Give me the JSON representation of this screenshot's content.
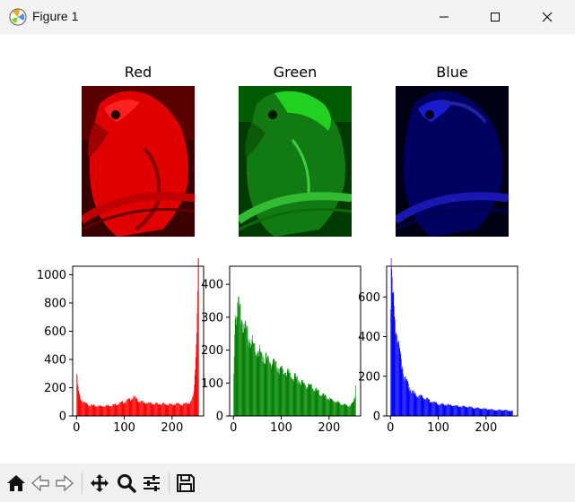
{
  "window": {
    "title": "Figure 1",
    "minimize_icon": "minimize-icon",
    "maximize_icon": "maximize-icon",
    "close_icon": "close-icon"
  },
  "toolbar": {
    "icons": [
      "home-icon",
      "back-icon",
      "forward-icon",
      "pan-icon",
      "zoom-icon",
      "configure-subplots-icon",
      "save-icon"
    ]
  },
  "images": [
    {
      "title": "Red",
      "color": "#ff0000"
    },
    {
      "title": "Green",
      "color": "#00ff00"
    },
    {
      "title": "Blue",
      "color": "#0000ff"
    }
  ],
  "chart_data": [
    {
      "type": "bar",
      "series": [
        {
          "color": "#ff0000"
        }
      ],
      "xlim": [
        -8,
        266
      ],
      "ylim": [
        0,
        1060
      ],
      "xticks": [
        0,
        100,
        200
      ],
      "yticks": [
        0,
        200,
        400,
        600,
        800,
        1000
      ],
      "xtick_labels": [
        "0",
        "100",
        "200"
      ],
      "ytick_labels": [
        "0",
        "200",
        "400",
        "600",
        "800",
        "1000"
      ],
      "x": [
        0,
        2,
        4,
        6,
        8,
        10,
        15,
        20,
        30,
        40,
        50,
        60,
        70,
        80,
        90,
        100,
        110,
        115,
        120,
        125,
        130,
        140,
        150,
        160,
        170,
        180,
        190,
        200,
        210,
        220,
        230,
        240,
        244,
        246,
        248,
        250,
        252,
        254,
        255
      ],
      "y": [
        300,
        220,
        170,
        140,
        125,
        110,
        95,
        85,
        75,
        70,
        70,
        72,
        75,
        80,
        90,
        100,
        115,
        125,
        130,
        120,
        105,
        95,
        90,
        88,
        85,
        85,
        82,
        80,
        85,
        80,
        88,
        100,
        150,
        230,
        350,
        520,
        760,
        1000,
        1020
      ]
    },
    {
      "type": "bar",
      "series": [
        {
          "color": "#008000"
        }
      ],
      "xlim": [
        -8,
        266
      ],
      "ylim": [
        0,
        455
      ],
      "xticks": [
        0,
        100,
        200
      ],
      "yticks": [
        0,
        100,
        200,
        300,
        400
      ],
      "xtick_labels": [
        "0",
        "100",
        "200"
      ],
      "ytick_labels": [
        "0",
        "100",
        "200",
        "300",
        "400"
      ],
      "x": [
        0,
        3,
        6,
        10,
        15,
        20,
        25,
        30,
        40,
        50,
        60,
        70,
        80,
        90,
        100,
        110,
        120,
        130,
        140,
        150,
        160,
        170,
        180,
        190,
        200,
        210,
        220,
        230,
        240,
        245,
        250,
        254,
        255
      ],
      "y": [
        120,
        340,
        310,
        330,
        300,
        280,
        260,
        240,
        220,
        200,
        185,
        170,
        160,
        150,
        140,
        135,
        125,
        115,
        105,
        95,
        90,
        80,
        70,
        60,
        52,
        45,
        40,
        35,
        30,
        32,
        40,
        60,
        95
      ]
    },
    {
      "type": "bar",
      "series": [
        {
          "color": "#0000ff"
        }
      ],
      "xlim": [
        -8,
        266
      ],
      "ylim": [
        0,
        755
      ],
      "xticks": [
        0,
        100,
        200
      ],
      "yticks": [
        0,
        200,
        400,
        600
      ],
      "xtick_labels": [
        "0",
        "100",
        "200"
      ],
      "ytick_labels": [
        "0",
        "200",
        "400",
        "600"
      ],
      "x": [
        0,
        1,
        2,
        3,
        5,
        8,
        10,
        15,
        20,
        25,
        30,
        40,
        50,
        60,
        70,
        80,
        90,
        100,
        120,
        140,
        160,
        180,
        200,
        220,
        240,
        255
      ],
      "y": [
        600,
        740,
        700,
        640,
        600,
        520,
        460,
        380,
        300,
        240,
        190,
        140,
        110,
        100,
        90,
        80,
        70,
        60,
        55,
        50,
        45,
        40,
        35,
        30,
        28,
        25
      ]
    }
  ]
}
